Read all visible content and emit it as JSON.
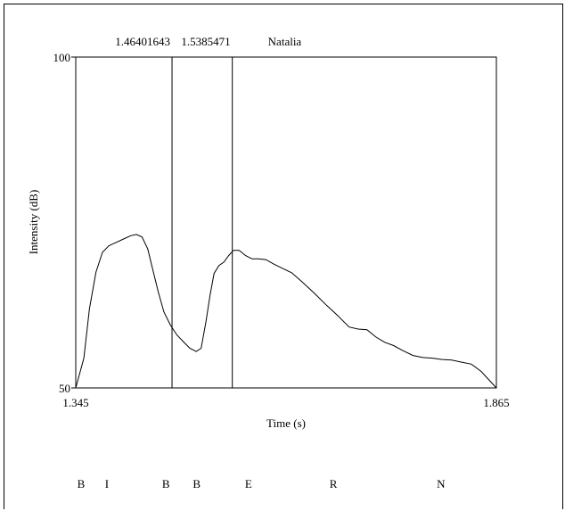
{
  "chart_data": {
    "type": "line",
    "title": "",
    "xlabel": "Time (s)",
    "ylabel": "Intensity (dB)",
    "xlim": [
      1.345,
      1.865
    ],
    "ylim": [
      50,
      100
    ],
    "x_tick_labels": [
      "1.345",
      "1.865"
    ],
    "y_tick_labels": [
      "100",
      "50"
    ],
    "grid": false,
    "cursor_lines": [
      {
        "x": 1.46401643,
        "label": "1.46401643"
      },
      {
        "x": 1.5385471,
        "label": "1.5385471"
      }
    ],
    "top_annotation": "Natalia",
    "series": [
      {
        "x": [
          1.345,
          1.355,
          1.362,
          1.37,
          1.378,
          1.386,
          1.395,
          1.404,
          1.413,
          1.42,
          1.427,
          1.434,
          1.44,
          1.447,
          1.454,
          1.462,
          1.47,
          1.478,
          1.486,
          1.494,
          1.5,
          1.506,
          1.511,
          1.516,
          1.522,
          1.528,
          1.534,
          1.54,
          1.547,
          1.555,
          1.563,
          1.571,
          1.58,
          1.59,
          1.6,
          1.612,
          1.625,
          1.64,
          1.655,
          1.67,
          1.683,
          1.694,
          1.705,
          1.716,
          1.727,
          1.738,
          1.75,
          1.762,
          1.774,
          1.786,
          1.798,
          1.81,
          1.822,
          1.834,
          1.846,
          1.856,
          1.865
        ],
        "y": [
          50,
          54.5,
          62,
          67.5,
          70.5,
          71.5,
          72,
          72.5,
          73,
          73.2,
          72.8,
          71,
          68,
          64.5,
          61.5,
          59.5,
          58,
          57,
          56,
          55.5,
          56,
          60,
          64,
          67.3,
          68.5,
          69,
          70,
          70.8,
          70.8,
          70,
          69.5,
          69.5,
          69.4,
          68.7,
          68.1,
          67.4,
          66,
          64.3,
          62.5,
          60.8,
          59.2,
          58.9,
          58.8,
          57.7,
          56.9,
          56.4,
          55.6,
          54.9,
          54.6,
          54.5,
          54.3,
          54.2,
          53.9,
          53.6,
          52.5,
          51.2,
          50
        ]
      }
    ]
  },
  "segments": [
    {
      "label": "B",
      "time": 1.3515
    },
    {
      "label": "I",
      "time": 1.3835
    },
    {
      "label": "B",
      "time": 1.4565
    },
    {
      "label": "B",
      "time": 1.4945
    },
    {
      "label": "E",
      "time": 1.5585
    },
    {
      "label": "R",
      "time": 1.6635
    },
    {
      "label": "N",
      "time": 1.7965
    }
  ]
}
